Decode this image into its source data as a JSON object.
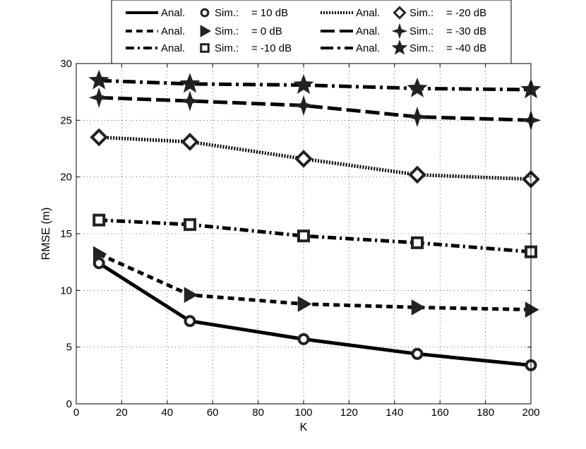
{
  "chart_data": {
    "type": "line",
    "xlabel": "K",
    "ylabel": "RMSE (m)",
    "xlim": [
      0,
      200
    ],
    "ylim": [
      0,
      30
    ],
    "xticks": [
      0,
      20,
      40,
      60,
      80,
      100,
      120,
      140,
      160,
      180,
      200
    ],
    "yticks": [
      0,
      5,
      10,
      15,
      20,
      25,
      30
    ],
    "grid": true,
    "legend_position": "top",
    "x": [
      10,
      50,
      100,
      150,
      200
    ],
    "series": [
      {
        "name": "= 10 dB",
        "anal_label": "Anal.",
        "sim_label": "Sim.:",
        "dash": "solid",
        "marker": "circle",
        "values": [
          12.4,
          7.3,
          5.7,
          4.4,
          3.4
        ]
      },
      {
        "name": "= 0 dB",
        "anal_label": "Anal.",
        "sim_label": "Sim.:",
        "dash": "dashed",
        "marker": "triangle-right",
        "values": [
          13.2,
          9.6,
          8.8,
          8.5,
          8.3
        ]
      },
      {
        "name": "= -10 dB",
        "anal_label": "Anal.",
        "sim_label": "Sim.:",
        "dash": "dashdot",
        "marker": "square",
        "values": [
          16.2,
          15.8,
          14.8,
          14.2,
          13.4
        ]
      },
      {
        "name": "= -20 dB",
        "anal_label": "Anal.",
        "sim_label": "Sim.:",
        "dash": "dotted",
        "marker": "diamond",
        "values": [
          23.5,
          23.1,
          21.6,
          20.2,
          19.8
        ]
      },
      {
        "name": "= -30 dB",
        "anal_label": "Anal.",
        "sim_label": "Sim.:",
        "dash": "longdash",
        "marker": "star4",
        "values": [
          27.0,
          26.7,
          26.3,
          25.3,
          25.0
        ]
      },
      {
        "name": "= -40 dB",
        "anal_label": "Anal.",
        "sim_label": "Sim.:",
        "dash": "longdashdot",
        "marker": "star5",
        "values": [
          28.5,
          28.2,
          28.1,
          27.8,
          27.7
        ]
      }
    ]
  }
}
